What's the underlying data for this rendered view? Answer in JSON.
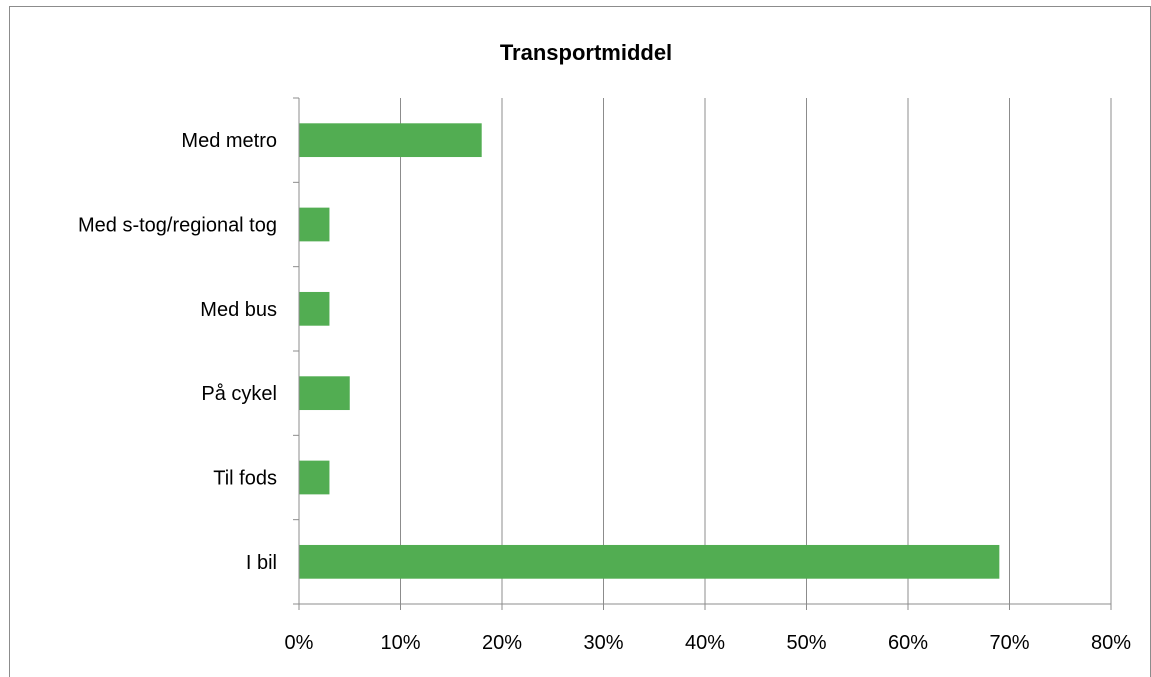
{
  "chart_data": {
    "type": "bar",
    "orientation": "horizontal",
    "title": "Transportmiddel",
    "xlabel": "",
    "ylabel": "",
    "categories": [
      "Med metro",
      "Med s-tog/regional tog",
      "Med bus",
      "På cykel",
      "Til fods",
      "I bil"
    ],
    "values": [
      18,
      3,
      3,
      5,
      3,
      69
    ],
    "xlim": [
      0,
      80
    ],
    "xticks": [
      0,
      10,
      20,
      30,
      40,
      50,
      60,
      70,
      80
    ],
    "xtick_labels": [
      "0%",
      "10%",
      "20%",
      "30%",
      "40%",
      "50%",
      "60%",
      "70%",
      "80%"
    ],
    "grid": "vertical",
    "legend": "none",
    "colors": {
      "bar": "#52ad52",
      "gridline": "#8c8c8c",
      "axis": "#8c8c8c"
    }
  }
}
